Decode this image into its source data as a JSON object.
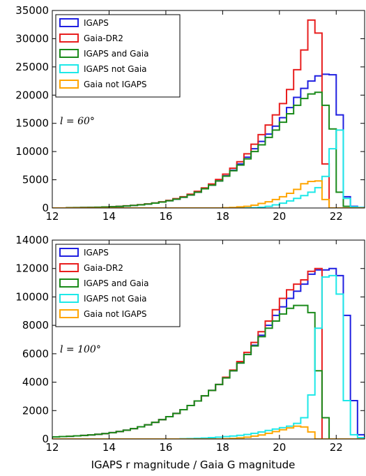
{
  "figure": {
    "xlabel": "IGAPS r magnitude / Gaia G magnitude"
  },
  "chart_data": [
    {
      "type": "step-histogram",
      "annotation": "l = 60°",
      "xlim": [
        12,
        23
      ],
      "ylim": [
        0,
        35000
      ],
      "xticks": [
        "12",
        "14",
        "16",
        "18",
        "20",
        "22"
      ],
      "yticks": [
        "0",
        "5000",
        "10000",
        "15000",
        "20000",
        "25000",
        "30000",
        "35000"
      ],
      "legend_position": "upper-left",
      "bin_edges": [
        12.0,
        12.25,
        12.5,
        12.75,
        13.0,
        13.25,
        13.5,
        13.75,
        14.0,
        14.25,
        14.5,
        14.75,
        15.0,
        15.25,
        15.5,
        15.75,
        16.0,
        16.25,
        16.5,
        16.75,
        17.0,
        17.25,
        17.5,
        17.75,
        18.0,
        18.25,
        18.5,
        18.75,
        19.0,
        19.25,
        19.5,
        19.75,
        20.0,
        20.25,
        20.5,
        20.75,
        21.0,
        21.25,
        21.5,
        21.75,
        22.0,
        22.25,
        22.5,
        22.75,
        23.0
      ],
      "series": [
        {
          "name": "IGAPS",
          "color": "#1f1fe0",
          "values": [
            0,
            0,
            50,
            60,
            80,
            100,
            130,
            170,
            220,
            280,
            360,
            450,
            560,
            700,
            860,
            1050,
            1280,
            1560,
            1900,
            2300,
            2800,
            3400,
            4050,
            4800,
            5700,
            6700,
            7800,
            9000,
            10500,
            11800,
            13100,
            14500,
            16000,
            17800,
            19600,
            21200,
            22500,
            23400,
            23700,
            23600,
            16500,
            2000,
            300,
            100
          ]
        },
        {
          "name": "Gaia-DR2",
          "color": "#e81e1e",
          "values": [
            0,
            0,
            60,
            70,
            90,
            110,
            140,
            180,
            230,
            300,
            380,
            470,
            590,
            730,
            900,
            1100,
            1350,
            1650,
            2000,
            2450,
            2950,
            3550,
            4250,
            5050,
            6000,
            7050,
            8200,
            9600,
            11300,
            13000,
            14700,
            16500,
            18500,
            21000,
            24500,
            28000,
            33300,
            31000,
            7800,
            0,
            0,
            0,
            0,
            0
          ]
        },
        {
          "name": "IGAPS and Gaia",
          "color": "#1a8a1a",
          "values": [
            0,
            0,
            50,
            60,
            80,
            100,
            130,
            170,
            220,
            280,
            360,
            450,
            560,
            700,
            860,
            1050,
            1280,
            1560,
            1900,
            2300,
            2800,
            3400,
            4050,
            4800,
            5650,
            6600,
            7600,
            8700,
            10000,
            11200,
            12500,
            13800,
            15200,
            16700,
            18200,
            19400,
            20200,
            20500,
            18200,
            14000,
            2800,
            300,
            100,
            0
          ]
        },
        {
          "name": "IGAPS not Gaia",
          "color": "#1de8e8",
          "values": [
            0,
            0,
            0,
            0,
            0,
            0,
            0,
            0,
            0,
            0,
            0,
            0,
            0,
            0,
            0,
            0,
            0,
            0,
            0,
            0,
            0,
            0,
            0,
            0,
            0,
            0,
            0,
            0,
            50,
            120,
            300,
            550,
            850,
            1250,
            1700,
            2200,
            2800,
            3600,
            5600,
            10500,
            13800,
            1700,
            200,
            100
          ]
        },
        {
          "name": "Gaia not IGAPS",
          "color": "#ffa500",
          "values": [
            0,
            0,
            0,
            0,
            0,
            0,
            0,
            0,
            0,
            0,
            0,
            0,
            0,
            0,
            0,
            0,
            0,
            0,
            0,
            0,
            0,
            0,
            0,
            0,
            50,
            100,
            200,
            300,
            500,
            800,
            1100,
            1500,
            2000,
            2600,
            3300,
            4300,
            4700,
            4800,
            1500,
            0,
            0,
            0,
            0,
            0
          ]
        }
      ]
    },
    {
      "type": "step-histogram",
      "annotation": "l = 100°",
      "xlim": [
        12,
        23
      ],
      "ylim": [
        0,
        14000
      ],
      "xticks": [
        "12",
        "14",
        "16",
        "18",
        "20",
        "22"
      ],
      "yticks": [
        "0",
        "2000",
        "4000",
        "6000",
        "8000",
        "10000",
        "12000",
        "14000"
      ],
      "legend_position": "upper-left",
      "bin_edges": [
        12.0,
        12.25,
        12.5,
        12.75,
        13.0,
        13.25,
        13.5,
        13.75,
        14.0,
        14.25,
        14.5,
        14.75,
        15.0,
        15.25,
        15.5,
        15.75,
        16.0,
        16.25,
        16.5,
        16.75,
        17.0,
        17.25,
        17.5,
        17.75,
        18.0,
        18.25,
        18.5,
        18.75,
        19.0,
        19.25,
        19.5,
        19.75,
        20.0,
        20.25,
        20.5,
        20.75,
        21.0,
        21.25,
        21.5,
        21.75,
        22.0,
        22.25,
        22.5,
        22.75,
        23.0
      ],
      "series": [
        {
          "name": "IGAPS",
          "color": "#1f1fe0",
          "values": [
            150,
            170,
            190,
            220,
            250,
            290,
            330,
            380,
            450,
            530,
            620,
            730,
            860,
            1000,
            1170,
            1360,
            1570,
            1800,
            2060,
            2360,
            2680,
            3040,
            3420,
            3840,
            4300,
            4800,
            5350,
            5950,
            6600,
            7300,
            8000,
            8700,
            9300,
            9900,
            10400,
            10900,
            11600,
            11900,
            11900,
            12000,
            11500,
            8700,
            2700,
            300
          ]
        },
        {
          "name": "Gaia-DR2",
          "color": "#e81e1e",
          "values": [
            150,
            170,
            190,
            220,
            250,
            290,
            330,
            380,
            450,
            530,
            620,
            730,
            860,
            1000,
            1170,
            1360,
            1570,
            1800,
            2060,
            2360,
            2680,
            3040,
            3420,
            3840,
            4350,
            4850,
            5450,
            6100,
            6800,
            7550,
            8300,
            9100,
            9900,
            10500,
            10900,
            11200,
            11800,
            12000,
            0,
            0,
            0,
            0,
            0,
            0
          ]
        },
        {
          "name": "IGAPS and Gaia",
          "color": "#1a8a1a",
          "values": [
            150,
            170,
            190,
            220,
            250,
            290,
            330,
            380,
            450,
            530,
            620,
            730,
            860,
            1000,
            1170,
            1360,
            1570,
            1800,
            2060,
            2360,
            2680,
            3040,
            3420,
            3840,
            4300,
            4800,
            5350,
            5950,
            6550,
            7200,
            7800,
            8300,
            8800,
            9200,
            9400,
            9400,
            8900,
            4800,
            1500,
            0,
            0,
            0,
            0,
            0
          ]
        },
        {
          "name": "IGAPS not Gaia",
          "color": "#1de8e8",
          "values": [
            0,
            0,
            0,
            0,
            0,
            0,
            0,
            0,
            0,
            0,
            0,
            0,
            0,
            0,
            0,
            0,
            0,
            0,
            20,
            30,
            50,
            70,
            100,
            130,
            170,
            210,
            260,
            320,
            400,
            500,
            600,
            700,
            800,
            900,
            1100,
            1500,
            3100,
            7800,
            11400,
            11500,
            10200,
            2700,
            300,
            100
          ]
        },
        {
          "name": "Gaia not IGAPS",
          "color": "#ffa500",
          "values": [
            0,
            0,
            0,
            0,
            0,
            0,
            0,
            0,
            0,
            0,
            0,
            0,
            0,
            0,
            0,
            0,
            0,
            0,
            0,
            0,
            0,
            0,
            0,
            0,
            20,
            40,
            80,
            130,
            200,
            280,
            400,
            520,
            650,
            780,
            900,
            850,
            500,
            0,
            0,
            0,
            0,
            0,
            0,
            0
          ]
        }
      ]
    }
  ]
}
